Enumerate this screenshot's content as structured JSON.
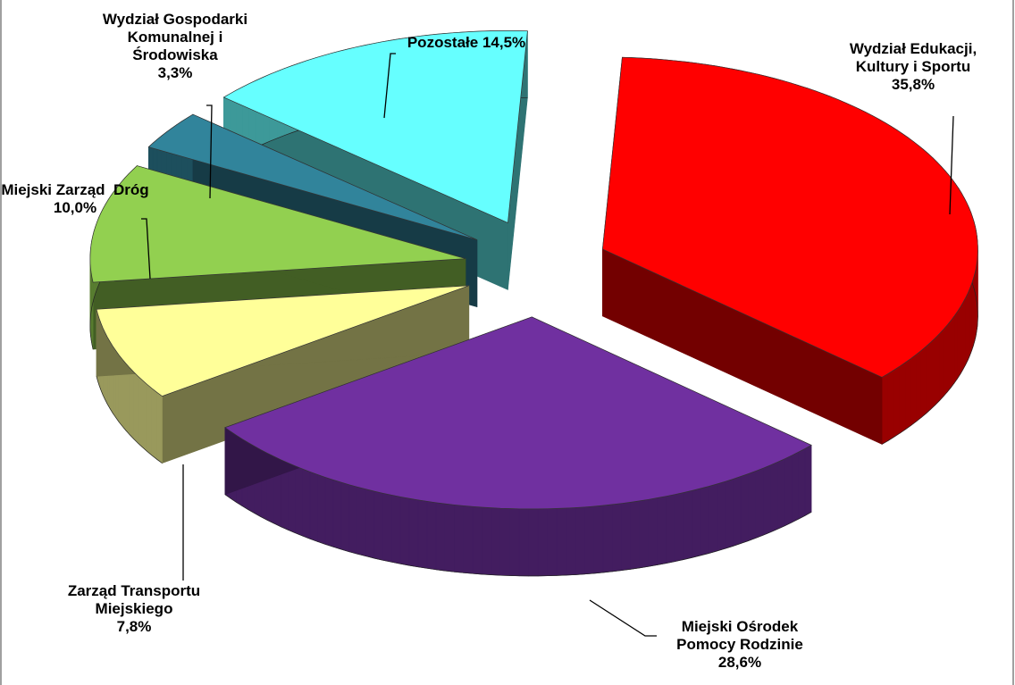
{
  "chart_data": {
    "type": "pie3d",
    "categories": [
      "Wydział Edukacji, Kultury i Sportu",
      "Miejski Ośrodek Pomocy Rodzinie",
      "Zarząd Transportu Miejskiego",
      "Miejski Zarząd  Dróg",
      "Wydział Gospodarki Komunalnej i Środowiska",
      "Pozostałe"
    ],
    "values": [
      35.8,
      28.6,
      7.8,
      10.0,
      3.3,
      14.5
    ],
    "value_labels": [
      "35,8%",
      "28,6%",
      "7,8%",
      "10,0%",
      "3,3%",
      "14,5%"
    ],
    "colors": [
      "#ff0000",
      "#7030a0",
      "#ffff99",
      "#92d050",
      "#31849b",
      "#66ffff"
    ]
  }
}
